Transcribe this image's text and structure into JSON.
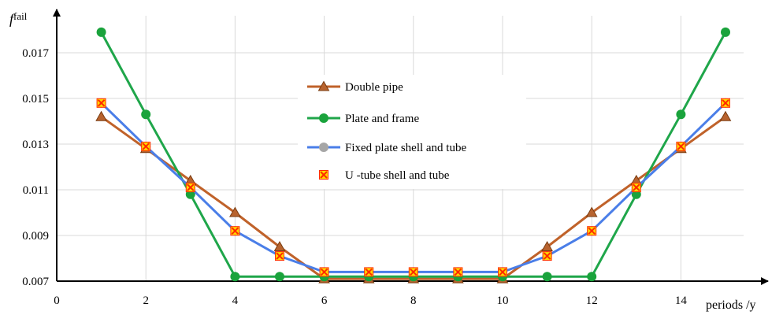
{
  "chart_data": {
    "type": "line",
    "x_label": "periods /y",
    "y_label_main": "f",
    "y_label_sup": "fail",
    "xlim": [
      0,
      16
    ],
    "ylim": [
      0.007,
      0.0185
    ],
    "x_ticks": [
      0,
      2,
      4,
      6,
      8,
      10,
      12,
      14
    ],
    "x_tick_labels": [
      "0",
      "2",
      "4",
      "6",
      "8",
      "10",
      "12",
      "14"
    ],
    "y_ticks": [
      0.007,
      0.009,
      0.011,
      0.013,
      0.015,
      0.017
    ],
    "y_tick_labels": [
      "0.007",
      "0.009",
      "0.011",
      "0.013",
      "0.015",
      "0.017"
    ],
    "grid": true,
    "legend_position": "center",
    "x": [
      1,
      2,
      3,
      4,
      5,
      6,
      7,
      8,
      9,
      10,
      11,
      12,
      13,
      14,
      15
    ],
    "series": [
      {
        "name": "Double pipe",
        "marker": "triangle",
        "color": "#c0622a",
        "marker_color": "#b8632e",
        "values": [
          0.0142,
          0.0128,
          0.0114,
          0.01,
          0.0085,
          0.0071,
          0.0071,
          0.0071,
          0.0071,
          0.0071,
          0.0085,
          0.01,
          0.0114,
          0.0128,
          0.0142
        ]
      },
      {
        "name": "Plate and frame",
        "marker": "circle",
        "color": "#1fa64a",
        "marker_color": "#1aa33c",
        "values": [
          0.0179,
          0.0143,
          0.0108,
          0.0072,
          0.0072,
          0.0072,
          0.0072,
          0.0072,
          0.0072,
          0.0072,
          0.0072,
          0.0072,
          0.0108,
          0.0143,
          0.0179
        ]
      },
      {
        "name": "Fixed plate shell and tube",
        "marker": "circle",
        "color": "#4a7ee8",
        "marker_color": "#a6a6a6",
        "values": [
          0.0148,
          0.0129,
          0.0111,
          0.0092,
          0.0081,
          0.0074,
          0.0074,
          0.0074,
          0.0074,
          0.0074,
          0.0081,
          0.0092,
          0.0111,
          0.0129,
          0.0148
        ]
      },
      {
        "name": "U -tube shell and tube",
        "marker": "square-x",
        "color": "",
        "marker_color": "#ffd700",
        "marker_edge": "#ff2a00",
        "values": [
          0.0148,
          0.0129,
          0.0111,
          0.0092,
          0.0081,
          0.0074,
          0.0074,
          0.0074,
          0.0074,
          0.0074,
          0.0081,
          0.0092,
          0.0111,
          0.0129,
          0.0148
        ]
      }
    ]
  }
}
